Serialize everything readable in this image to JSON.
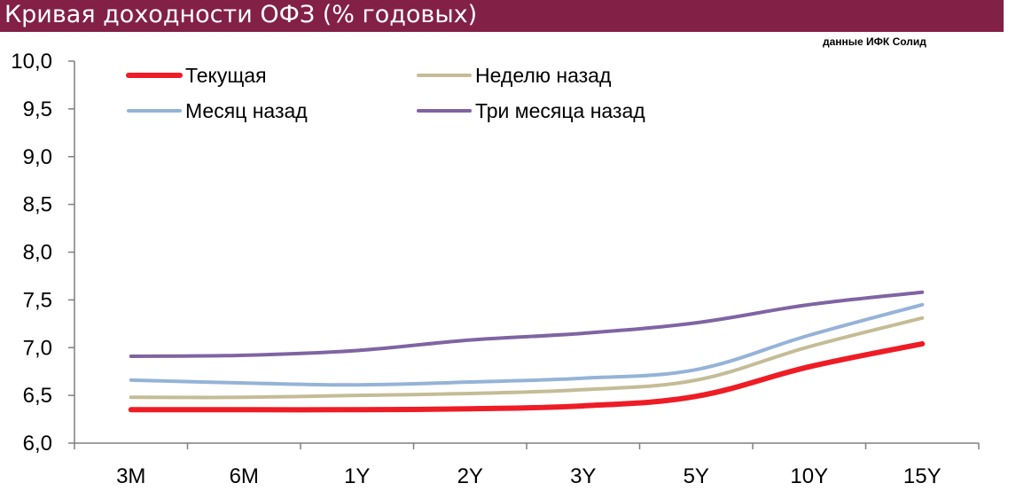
{
  "header": {
    "title": "Кривая доходности ОФЗ (% годовых)",
    "source": "данные ИФК Солид"
  },
  "chart_data": {
    "type": "line",
    "title": "Кривая доходности ОФЗ (% годовых)",
    "xlabel": "",
    "ylabel": "",
    "categories": [
      "3M",
      "6M",
      "1Y",
      "2Y",
      "3Y",
      "5Y",
      "10Y",
      "15Y"
    ],
    "ylim": [
      6.0,
      10.0
    ],
    "yticks": [
      "10,0",
      "9,5",
      "9,0",
      "8,5",
      "8,0",
      "7,5",
      "7,0",
      "6,5",
      "6,0"
    ],
    "yticks_values": [
      10.0,
      9.5,
      9.0,
      8.5,
      8.0,
      7.5,
      7.0,
      6.5,
      6.0
    ],
    "grid": false,
    "legend_position": "top",
    "series": [
      {
        "name": "Текущая",
        "color": "#ee1c25",
        "width": 6,
        "values": [
          6.35,
          6.35,
          6.35,
          6.36,
          6.39,
          6.49,
          6.8,
          7.04
        ]
      },
      {
        "name": "Неделю назад",
        "color": "#c4bc96",
        "width": 4,
        "values": [
          6.48,
          6.48,
          6.5,
          6.52,
          6.56,
          6.66,
          7.01,
          7.31
        ]
      },
      {
        "name": "Месяц назад",
        "color": "#95b3d7",
        "width": 4,
        "values": [
          6.66,
          6.63,
          6.61,
          6.64,
          6.68,
          6.77,
          7.13,
          7.45
        ]
      },
      {
        "name": "Три месяца назад",
        "color": "#8064a2",
        "width": 4,
        "values": [
          6.91,
          6.92,
          6.97,
          7.08,
          7.15,
          7.26,
          7.45,
          7.58
        ]
      }
    ]
  }
}
